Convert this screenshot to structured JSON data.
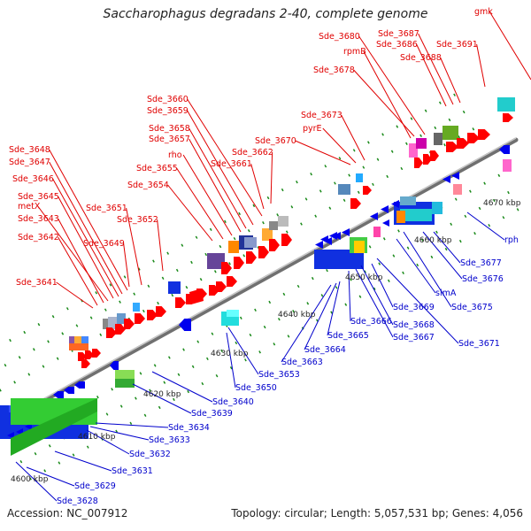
{
  "title": "Saccharophagus degradans 2-40, complete genome",
  "footer": {
    "accession": "Accession: NC_007912",
    "summary": "Topology: circular; Length: 5,057,531 bp; Genes: 4,056"
  },
  "colors": {
    "forward_label": "#e00000",
    "reverse_label": "#0000cc",
    "forward_gene": "#ff0000",
    "reverse_gene": "#0000ee",
    "backbone": "#909090",
    "tick": "#1a8a1a"
  },
  "ruler": [
    "4600 kbp",
    "4610 kbp",
    "4620 kbp",
    "4630 kbp",
    "4640 kbp",
    "4650 kbp",
    "4660 kbp",
    "4670 kbp"
  ],
  "forward_labels": [
    "Sde_3641",
    "Sde_3642",
    "Sde_3643",
    "metX",
    "Sde_3645",
    "Sde_3646",
    "Sde_3647",
    "Sde_3648",
    "Sde_3649",
    "Sde_3651",
    "Sde_3652",
    "Sde_3654",
    "Sde_3655",
    "rho",
    "Sde_3657",
    "Sde_3658",
    "Sde_3659",
    "Sde_3660",
    "Sde_3661",
    "Sde_3662",
    "Sde_3670",
    "pyrE",
    "Sde_3673",
    "Sde_3678",
    "rpmB",
    "Sde_3680",
    "Sde_3686",
    "Sde_3687",
    "Sde_3688",
    "Sde_3691",
    "gmk"
  ],
  "reverse_labels": [
    "Sde_3628",
    "Sde_3629",
    "Sde_3631",
    "Sde_3632",
    "Sde_3633",
    "Sde_3634",
    "Sde_3639",
    "Sde_3640",
    "Sde_3650",
    "Sde_3653",
    "Sde_3663",
    "Sde_3664",
    "Sde_3665",
    "Sde_3666",
    "Sde_3667",
    "Sde_3668",
    "Sde_3669",
    "slmA",
    "Sde_3671",
    "Sde_3675",
    "Sde_3676",
    "Sde_3677",
    "rph"
  ]
}
